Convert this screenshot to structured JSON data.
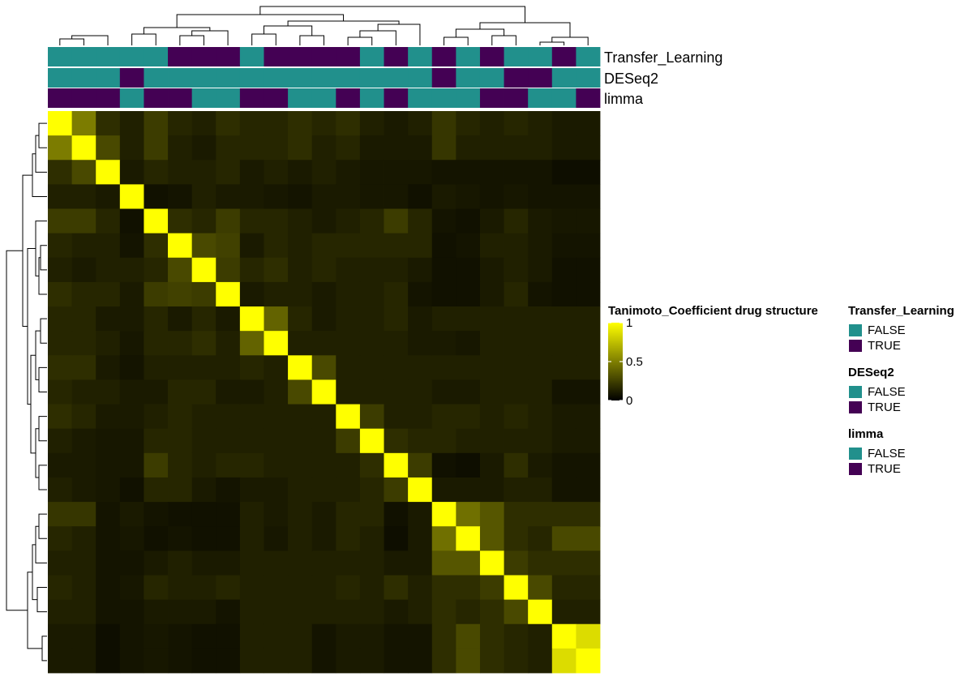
{
  "chart_data": {
    "type": "heatmap",
    "n": 23,
    "scale_min": 0,
    "scale_max": 1,
    "colorbar": {
      "title": "Tanimoto_Coefficient drug structure",
      "ticks": [
        {
          "value": 1,
          "label": "1"
        },
        {
          "value": 0.5,
          "label": "0.5"
        },
        {
          "value": 0,
          "label": "0"
        }
      ],
      "colors": [
        "#000000",
        "#ffff00"
      ]
    },
    "values": [
      [
        1,
        0.45,
        0.15,
        0.1,
        0.2,
        0.12,
        0.1,
        0.15,
        0.12,
        0.12,
        0.15,
        0.12,
        0.15,
        0.1,
        0.08,
        0.1,
        0.18,
        0.12,
        0.1,
        0.12,
        0.1,
        0.08,
        0.08
      ],
      [
        0.45,
        1,
        0.25,
        0.1,
        0.2,
        0.1,
        0.08,
        0.12,
        0.12,
        0.12,
        0.15,
        0.1,
        0.12,
        0.08,
        0.08,
        0.08,
        0.18,
        0.1,
        0.1,
        0.1,
        0.1,
        0.08,
        0.08
      ],
      [
        0.15,
        0.25,
        1,
        0.08,
        0.12,
        0.1,
        0.1,
        0.12,
        0.08,
        0.1,
        0.08,
        0.1,
        0.08,
        0.07,
        0.07,
        0.07,
        0.06,
        0.06,
        0.06,
        0.06,
        0.06,
        0.04,
        0.04
      ],
      [
        0.1,
        0.1,
        0.08,
        1,
        0.05,
        0.06,
        0.1,
        0.08,
        0.08,
        0.07,
        0.06,
        0.08,
        0.08,
        0.07,
        0.07,
        0.05,
        0.08,
        0.07,
        0.06,
        0.07,
        0.06,
        0.06,
        0.06
      ],
      [
        0.2,
        0.2,
        0.12,
        0.05,
        1,
        0.15,
        0.12,
        0.2,
        0.12,
        0.12,
        0.1,
        0.08,
        0.1,
        0.12,
        0.2,
        0.12,
        0.06,
        0.05,
        0.08,
        0.12,
        0.08,
        0.07,
        0.07
      ],
      [
        0.12,
        0.1,
        0.1,
        0.06,
        0.15,
        1,
        0.25,
        0.22,
        0.08,
        0.12,
        0.1,
        0.12,
        0.12,
        0.12,
        0.12,
        0.12,
        0.05,
        0.06,
        0.1,
        0.1,
        0.08,
        0.06,
        0.06
      ],
      [
        0.1,
        0.08,
        0.1,
        0.1,
        0.12,
        0.25,
        1,
        0.2,
        0.12,
        0.15,
        0.1,
        0.12,
        0.1,
        0.1,
        0.1,
        0.08,
        0.05,
        0.05,
        0.08,
        0.1,
        0.08,
        0.05,
        0.05
      ],
      [
        0.15,
        0.12,
        0.12,
        0.08,
        0.2,
        0.22,
        0.2,
        1,
        0.08,
        0.1,
        0.1,
        0.08,
        0.1,
        0.1,
        0.12,
        0.06,
        0.05,
        0.05,
        0.08,
        0.12,
        0.06,
        0.05,
        0.05
      ],
      [
        0.12,
        0.12,
        0.08,
        0.08,
        0.12,
        0.08,
        0.12,
        0.08,
        1,
        0.35,
        0.12,
        0.08,
        0.1,
        0.1,
        0.12,
        0.08,
        0.1,
        0.1,
        0.1,
        0.1,
        0.1,
        0.1,
        0.1
      ],
      [
        0.12,
        0.12,
        0.1,
        0.07,
        0.12,
        0.12,
        0.15,
        0.1,
        0.35,
        1,
        0.1,
        0.1,
        0.1,
        0.1,
        0.1,
        0.08,
        0.08,
        0.07,
        0.1,
        0.1,
        0.1,
        0.1,
        0.1
      ],
      [
        0.15,
        0.15,
        0.08,
        0.06,
        0.1,
        0.1,
        0.1,
        0.1,
        0.12,
        0.1,
        1,
        0.25,
        0.1,
        0.1,
        0.1,
        0.1,
        0.1,
        0.1,
        0.1,
        0.1,
        0.1,
        0.1,
        0.1
      ],
      [
        0.12,
        0.1,
        0.1,
        0.08,
        0.08,
        0.12,
        0.12,
        0.08,
        0.08,
        0.1,
        0.25,
        1,
        0.1,
        0.1,
        0.1,
        0.1,
        0.08,
        0.08,
        0.1,
        0.1,
        0.1,
        0.06,
        0.06
      ],
      [
        0.15,
        0.12,
        0.08,
        0.08,
        0.1,
        0.12,
        0.1,
        0.1,
        0.1,
        0.1,
        0.1,
        0.1,
        1,
        0.2,
        0.1,
        0.1,
        0.12,
        0.12,
        0.1,
        0.12,
        0.1,
        0.08,
        0.08
      ],
      [
        0.1,
        0.08,
        0.07,
        0.07,
        0.12,
        0.12,
        0.1,
        0.1,
        0.1,
        0.1,
        0.1,
        0.1,
        0.2,
        1,
        0.15,
        0.12,
        0.12,
        0.1,
        0.1,
        0.1,
        0.1,
        0.08,
        0.08
      ],
      [
        0.08,
        0.08,
        0.07,
        0.07,
        0.2,
        0.12,
        0.1,
        0.12,
        0.12,
        0.1,
        0.1,
        0.1,
        0.1,
        0.15,
        1,
        0.2,
        0.05,
        0.04,
        0.08,
        0.15,
        0.08,
        0.06,
        0.06
      ],
      [
        0.1,
        0.08,
        0.07,
        0.05,
        0.12,
        0.12,
        0.08,
        0.06,
        0.08,
        0.08,
        0.1,
        0.1,
        0.1,
        0.12,
        0.2,
        1,
        0.08,
        0.08,
        0.08,
        0.1,
        0.1,
        0.06,
        0.06
      ],
      [
        0.18,
        0.18,
        0.06,
        0.08,
        0.06,
        0.05,
        0.05,
        0.05,
        0.1,
        0.08,
        0.1,
        0.08,
        0.12,
        0.12,
        0.05,
        0.08,
        1,
        0.4,
        0.3,
        0.15,
        0.15,
        0.15,
        0.15
      ],
      [
        0.12,
        0.1,
        0.06,
        0.07,
        0.05,
        0.06,
        0.05,
        0.05,
        0.1,
        0.07,
        0.1,
        0.08,
        0.12,
        0.1,
        0.04,
        0.08,
        0.4,
        1,
        0.3,
        0.15,
        0.12,
        0.25,
        0.25
      ],
      [
        0.1,
        0.1,
        0.06,
        0.06,
        0.08,
        0.1,
        0.08,
        0.08,
        0.1,
        0.1,
        0.1,
        0.1,
        0.1,
        0.1,
        0.08,
        0.08,
        0.3,
        0.3,
        1,
        0.2,
        0.15,
        0.15,
        0.15
      ],
      [
        0.12,
        0.1,
        0.06,
        0.07,
        0.12,
        0.1,
        0.1,
        0.12,
        0.1,
        0.1,
        0.1,
        0.1,
        0.12,
        0.1,
        0.15,
        0.1,
        0.15,
        0.15,
        0.2,
        1,
        0.25,
        0.12,
        0.12
      ],
      [
        0.1,
        0.1,
        0.06,
        0.06,
        0.08,
        0.08,
        0.08,
        0.06,
        0.1,
        0.1,
        0.1,
        0.1,
        0.1,
        0.1,
        0.08,
        0.1,
        0.15,
        0.12,
        0.15,
        0.25,
        1,
        0.1,
        0.1
      ],
      [
        0.08,
        0.08,
        0.04,
        0.06,
        0.07,
        0.06,
        0.05,
        0.05,
        0.1,
        0.1,
        0.1,
        0.06,
        0.08,
        0.08,
        0.06,
        0.06,
        0.15,
        0.25,
        0.15,
        0.12,
        0.1,
        1,
        0.85
      ],
      [
        0.08,
        0.08,
        0.04,
        0.06,
        0.07,
        0.06,
        0.05,
        0.05,
        0.1,
        0.1,
        0.1,
        0.06,
        0.08,
        0.08,
        0.06,
        0.06,
        0.15,
        0.25,
        0.15,
        0.12,
        0.1,
        0.85,
        1
      ]
    ],
    "annotations": [
      {
        "name": "Transfer_Learning",
        "values": [
          false,
          false,
          false,
          false,
          false,
          true,
          true,
          true,
          false,
          true,
          true,
          true,
          true,
          false,
          true,
          false,
          true,
          false,
          true,
          false,
          false,
          true,
          false
        ]
      },
      {
        "name": "DESeq2",
        "values": [
          false,
          false,
          false,
          true,
          false,
          false,
          false,
          false,
          false,
          false,
          false,
          false,
          false,
          false,
          false,
          false,
          true,
          false,
          false,
          true,
          true,
          false,
          false
        ]
      },
      {
        "name": "limma",
        "values": [
          true,
          true,
          true,
          false,
          true,
          true,
          false,
          false,
          true,
          true,
          false,
          false,
          true,
          false,
          true,
          false,
          false,
          false,
          true,
          true,
          false,
          false,
          true
        ]
      }
    ]
  },
  "legend": {
    "true_color": "#440154",
    "false_color": "#21908c",
    "groups": [
      {
        "title": "Transfer_Learning",
        "false_label": "FALSE",
        "true_label": "TRUE"
      },
      {
        "title": "DESeq2",
        "false_label": "FALSE",
        "true_label": "TRUE"
      },
      {
        "title": "limma",
        "false_label": "FALSE",
        "true_label": "TRUE"
      }
    ]
  }
}
